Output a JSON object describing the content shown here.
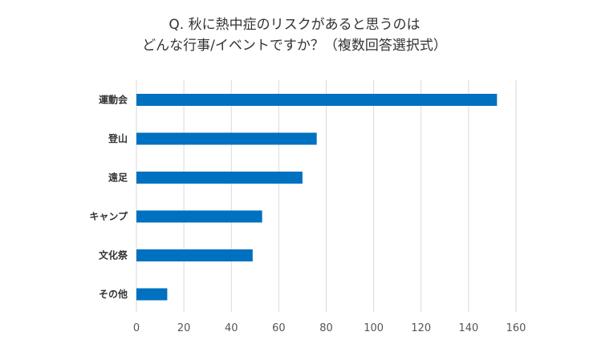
{
  "chart_data": {
    "type": "bar",
    "orientation": "horizontal",
    "title_lines": [
      "Q. 秋に熱中症のリスクがあると思うのは",
      "どんな行事/イベントですか？（複数回答選択式）"
    ],
    "categories": [
      "運動会",
      "登山",
      "遠足",
      "キャンプ",
      "文化祭",
      "その他"
    ],
    "values": [
      152,
      76,
      70,
      53,
      49,
      13
    ],
    "xlim": [
      0,
      160
    ],
    "xticks": [
      0,
      20,
      40,
      60,
      80,
      100,
      120,
      140,
      160
    ],
    "xlabel": "",
    "ylabel": "",
    "grid": true,
    "legend": "none",
    "bar_color": "#0070C0",
    "grid_color": "#d9d9d9"
  }
}
